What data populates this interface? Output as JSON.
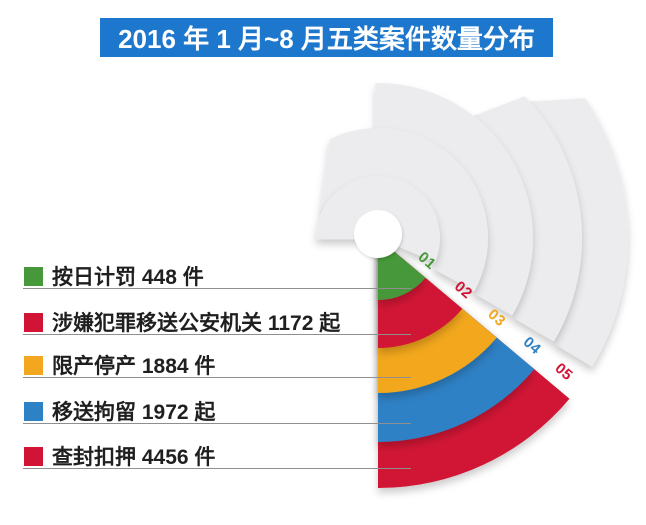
{
  "title": {
    "text": "2016 年 1 月~8 月五类案件数量分布"
  },
  "colors": {
    "title_bar": "#1d77cc",
    "ring_gray": "#ececee",
    "text": "#1f1f1f",
    "leader_line": "#8f8f8f",
    "background": "#ffffff"
  },
  "chart_data": {
    "type": "pie",
    "subtype": "staggered-radial-fan",
    "title": "2016 年 1 月~8 月五类案件数量分布",
    "legend_position": "left",
    "rings": [
      {
        "tag": "01",
        "name": "按日计罚",
        "value": 448,
        "unit": "件",
        "color": "#47983b",
        "display": "按日计罚 448 件"
      },
      {
        "tag": "02",
        "name": "涉嫌犯罪移送公安机关",
        "value": 1172,
        "unit": "起",
        "color": "#d11335",
        "display": "涉嫌犯罪移送公安机关 1172 起"
      },
      {
        "tag": "03",
        "name": "限产停产",
        "value": 1884,
        "unit": "件",
        "color": "#f2a71e",
        "display": "限产停产 1884 件"
      },
      {
        "tag": "04",
        "name": "移送拘留",
        "value": 1972,
        "unit": "起",
        "color": "#2d81c5",
        "display": "移送拘留 1972 起"
      },
      {
        "tag": "05",
        "name": "查封扣押",
        "value": 4456,
        "unit": "件",
        "color": "#d11335",
        "display": "查封扣押 4456 件"
      }
    ]
  }
}
